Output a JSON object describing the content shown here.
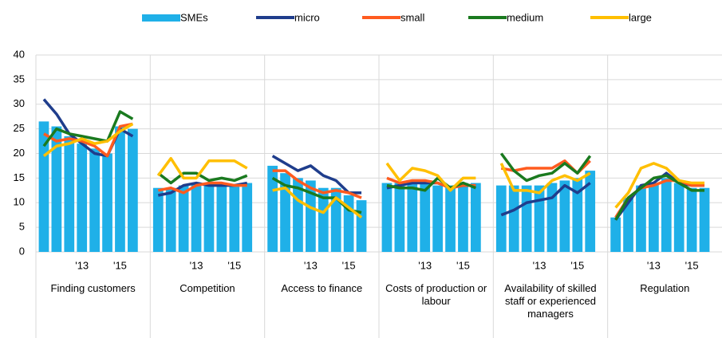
{
  "chart_data": {
    "type": "bar-line-panels",
    "ylim": [
      0,
      40
    ],
    "yticks": [
      0,
      5,
      10,
      15,
      20,
      25,
      30,
      35,
      40
    ],
    "grid": true,
    "series": [
      {
        "name": "SMEs",
        "color": "#1fb0e8",
        "kind": "bar"
      },
      {
        "name": "micro",
        "color": "#1f3d8c",
        "kind": "line"
      },
      {
        "name": "small",
        "color": "#ff5b1f",
        "kind": "line"
      },
      {
        "name": "medium",
        "color": "#1a7a1f",
        "kind": "line"
      },
      {
        "name": "large",
        "color": "#ffbf00",
        "kind": "line"
      }
    ],
    "panels": [
      {
        "title": "Finding customers",
        "categories": [
          null,
          null,
          null,
          "'13",
          null,
          null,
          "'15",
          null
        ],
        "values": [
          [
            26.5,
            25.5,
            23.5,
            22,
            21,
            20,
            25.5,
            25
          ],
          [
            31,
            28,
            24,
            22,
            20,
            19.5,
            25,
            23.5
          ],
          [
            24,
            22.5,
            23,
            22.5,
            21.5,
            19.5,
            25.5,
            26
          ],
          [
            21.5,
            25,
            24,
            23.5,
            23,
            22.5,
            28.5,
            27
          ],
          [
            19.5,
            21.5,
            22,
            23,
            22,
            22.5,
            24.5,
            26
          ]
        ]
      },
      {
        "title": "Competition",
        "categories": [
          null,
          null,
          null,
          "'13",
          null,
          null,
          "'15",
          null
        ],
        "values": [
          [
            13,
            13,
            13.5,
            14,
            14,
            14,
            13.5,
            14
          ],
          [
            11.5,
            12,
            13.5,
            14,
            13.5,
            13.5,
            13.5,
            14
          ],
          [
            12.5,
            13,
            12,
            13.5,
            14,
            14,
            13.5,
            13.5
          ],
          [
            16,
            14,
            16,
            16,
            14.5,
            15,
            14.5,
            15.5
          ],
          [
            15.5,
            19,
            15,
            15,
            18.5,
            18.5,
            18.5,
            17
          ]
        ]
      },
      {
        "title": "Access to finance",
        "categories": [
          null,
          null,
          null,
          "'13",
          null,
          null,
          "'15",
          null
        ],
        "values": [
          [
            17.5,
            16,
            15,
            14.5,
            13,
            13,
            11.5,
            10.5
          ],
          [
            19.5,
            18,
            16.5,
            17.5,
            15.5,
            14.5,
            12,
            12
          ],
          [
            16.5,
            16.5,
            14.5,
            13,
            12,
            12.5,
            12,
            11
          ],
          [
            15,
            13.5,
            13,
            12,
            11,
            11,
            8.5,
            8
          ],
          [
            12.5,
            13,
            10.5,
            9,
            8,
            11,
            9,
            7
          ]
        ]
      },
      {
        "title": "Costs of production or labour",
        "categories": [
          null,
          null,
          null,
          "'13",
          null,
          null,
          "'15",
          null
        ],
        "values": [
          [
            14,
            14,
            14,
            14,
            13.5,
            13.5,
            14,
            14
          ],
          [
            13,
            13.5,
            14,
            14,
            14,
            13,
            13.5,
            13.5
          ],
          [
            15,
            14,
            14.5,
            14.5,
            14,
            13,
            13.5,
            13.5
          ],
          [
            13.5,
            13,
            13,
            12.5,
            15,
            13,
            14,
            13
          ],
          [
            18,
            14.5,
            17,
            16.5,
            15.5,
            12.5,
            15,
            15
          ]
        ]
      },
      {
        "title": "Availability of skilled staff or experienced managers",
        "categories": [
          null,
          null,
          null,
          "'13",
          null,
          null,
          "'15",
          null
        ],
        "values": [
          [
            13.5,
            13.5,
            13.5,
            13.5,
            14,
            14.5,
            15,
            16.5
          ],
          [
            7.5,
            8.5,
            10,
            10.5,
            11,
            13.5,
            12,
            14
          ],
          [
            17,
            16.5,
            17,
            17,
            17,
            18.5,
            16,
            18.5
          ],
          [
            20,
            16.5,
            14.5,
            15.5,
            16,
            18,
            16,
            19.5
          ],
          [
            18,
            12.5,
            12.5,
            12,
            14.5,
            15.5,
            14.5,
            16
          ]
        ]
      },
      {
        "title": "Regulation",
        "categories": [
          null,
          null,
          null,
          "'13",
          null,
          null,
          "'15",
          null
        ],
        "values": [
          [
            7,
            11,
            13.5,
            14,
            15,
            14,
            13,
            13
          ],
          [
            6.5,
            10,
            13.5,
            14,
            16,
            14,
            13.5,
            13.5
          ],
          [
            7,
            11,
            13,
            13.5,
            14.5,
            14.5,
            13.5,
            13.5
          ],
          [
            6.5,
            11,
            13,
            15,
            15.5,
            14,
            12.5,
            12.5
          ],
          [
            9,
            12,
            17,
            18,
            17,
            14.5,
            14,
            14
          ]
        ]
      }
    ]
  }
}
